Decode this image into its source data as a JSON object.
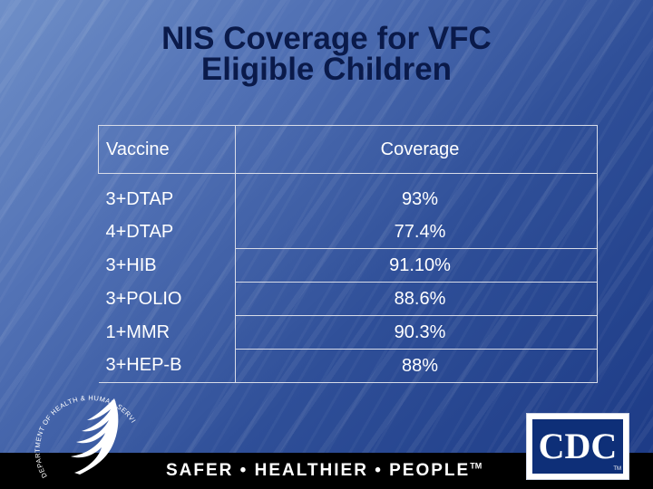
{
  "title": {
    "line1": "NIS Coverage for VFC",
    "line2": "Eligible Children"
  },
  "table": {
    "headers": {
      "vaccine": "Vaccine",
      "coverage": "Coverage"
    },
    "rows": [
      {
        "vaccine": "3+DTAP",
        "coverage": "93%"
      },
      {
        "vaccine": "4+DTAP",
        "coverage": "77.4%"
      },
      {
        "vaccine": "3+HIB",
        "coverage": "91.10%"
      },
      {
        "vaccine": "3+POLIO",
        "coverage": "88.6%"
      },
      {
        "vaccine": "1+MMR",
        "coverage": "90.3%"
      },
      {
        "vaccine": "3+HEP-B",
        "coverage": "88%"
      }
    ]
  },
  "footer": {
    "tagline": "SAFER • HEALTHIER • PEOPLE",
    "tm": "TM"
  },
  "logos": {
    "hhs_seal_text": "DEPARTMENT OF HEALTH & HUMAN SERVICES • USA",
    "cdc": "CDC",
    "cdc_tm": "TM"
  }
}
